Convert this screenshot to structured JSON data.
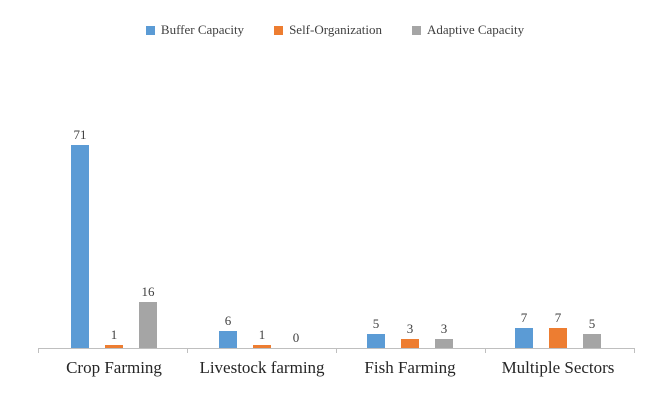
{
  "chart_data": {
    "type": "bar",
    "title": "",
    "xlabel": "",
    "ylabel": "",
    "ylim": [
      0,
      80
    ],
    "grid": false,
    "legend_position": "top-center",
    "categories": [
      "Crop Farming",
      "Livestock farming",
      "Fish Farming",
      "Multiple Sectors"
    ],
    "series": [
      {
        "name": "Buffer Capacity",
        "color": "#5b9bd5",
        "values": [
          71,
          6,
          5,
          7
        ]
      },
      {
        "name": "Self-Organization",
        "color": "#ed7d31",
        "values": [
          1,
          1,
          3,
          7
        ]
      },
      {
        "name": "Adaptive Capacity",
        "color": "#a5a5a5",
        "values": [
          16,
          0,
          3,
          5
        ]
      }
    ]
  },
  "colors": {
    "axis": "#bfbfbf",
    "data_label": "#404040",
    "category_label": "#262626"
  }
}
